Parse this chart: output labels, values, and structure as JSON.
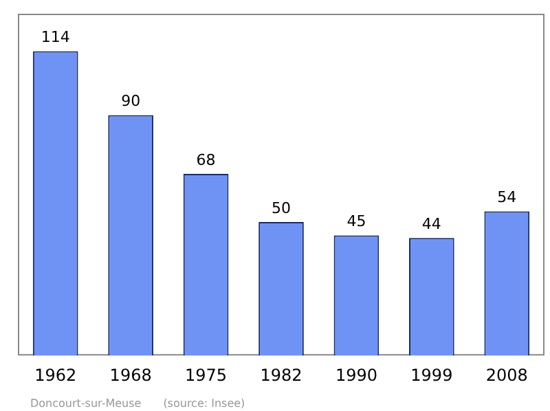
{
  "chart_data": {
    "type": "bar",
    "categories": [
      "1962",
      "1968",
      "1975",
      "1982",
      "1990",
      "1999",
      "2008"
    ],
    "values": [
      114,
      90,
      68,
      50,
      45,
      44,
      54
    ],
    "color": "#6f93f5",
    "ylim": [
      0,
      128
    ],
    "tick_labels": "x",
    "data_labels": true,
    "grid": false,
    "legend": false,
    "annotations": [
      "Doncourt-sur-Meuse",
      "(source: Insee)"
    ]
  }
}
